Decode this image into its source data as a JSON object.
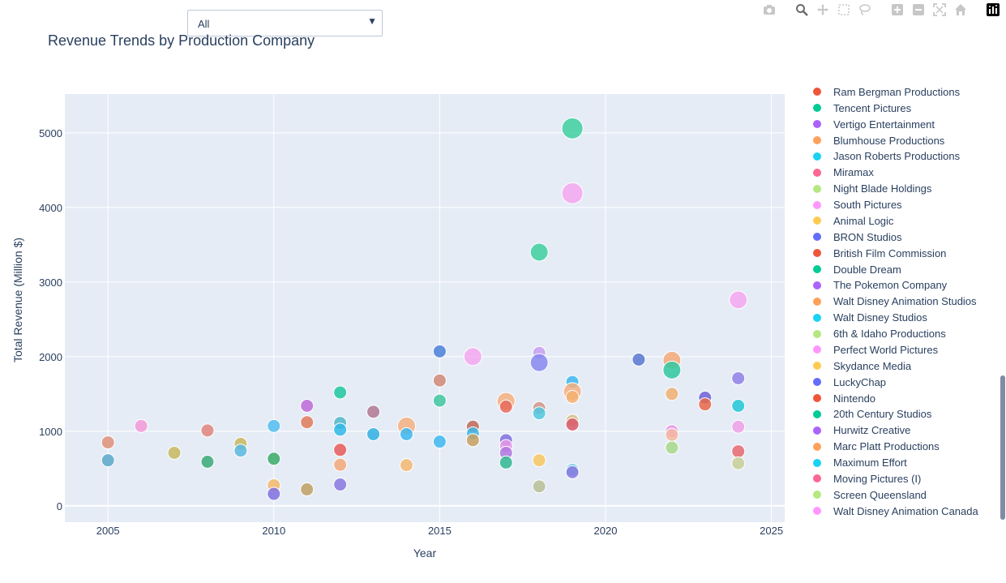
{
  "filter": {
    "selected": "All"
  },
  "title": "Revenue Trends by Production Company",
  "modebar": [
    "camera-icon",
    "zoom-icon",
    "pan-icon",
    "box-select-icon",
    "lasso-icon",
    "zoom-in-icon",
    "zoom-out-icon",
    "autoscale-icon",
    "reset-axes-icon",
    "plotly-logo-icon"
  ],
  "chart_data": {
    "type": "scatter",
    "title": "Revenue Trends by Production Company",
    "xlabel": "Year",
    "ylabel": "Total Revenue (Million $)",
    "xlim": [
      2003.7,
      2025.4
    ],
    "ylim": [
      -220,
      5520
    ],
    "xticks": [
      2005,
      2010,
      2015,
      2020,
      2025
    ],
    "yticks": [
      0,
      1000,
      2000,
      3000,
      4000,
      5000
    ],
    "grid": true,
    "legend_position": "right",
    "points": [
      {
        "x": 2005,
        "y": 850,
        "size": 8,
        "color": "#e0907a"
      },
      {
        "x": 2005,
        "y": 610,
        "size": 8,
        "color": "#5aa8c8"
      },
      {
        "x": 2006,
        "y": 1070,
        "size": 8,
        "color": "#f29ad8"
      },
      {
        "x": 2007,
        "y": 710,
        "size": 8,
        "color": "#c8b860"
      },
      {
        "x": 2008,
        "y": 1010,
        "size": 8,
        "color": "#e0857a"
      },
      {
        "x": 2008,
        "y": 590,
        "size": 8,
        "color": "#3aaa78"
      },
      {
        "x": 2009,
        "y": 830,
        "size": 8,
        "color": "#c8b860"
      },
      {
        "x": 2009,
        "y": 740,
        "size": 8,
        "color": "#5ab8e0"
      },
      {
        "x": 2010,
        "y": 1070,
        "size": 8,
        "color": "#52bdf0"
      },
      {
        "x": 2010,
        "y": 630,
        "size": 8,
        "color": "#3aaa68"
      },
      {
        "x": 2010,
        "y": 275,
        "size": 8,
        "color": "#f5b86a"
      },
      {
        "x": 2010,
        "y": 160,
        "size": 8,
        "color": "#8070e0"
      },
      {
        "x": 2011,
        "y": 1340,
        "size": 8,
        "color": "#c06ad8"
      },
      {
        "x": 2011,
        "y": 1120,
        "size": 8,
        "color": "#e07a5a"
      },
      {
        "x": 2011,
        "y": 220,
        "size": 8,
        "color": "#c0a060"
      },
      {
        "x": 2012,
        "y": 1520,
        "size": 8,
        "color": "#20c8a0"
      },
      {
        "x": 2012,
        "y": 1110,
        "size": 8,
        "color": "#50b8c8"
      },
      {
        "x": 2012,
        "y": 1020,
        "size": 8,
        "color": "#30b8e8"
      },
      {
        "x": 2012,
        "y": 750,
        "size": 8,
        "color": "#e85a58"
      },
      {
        "x": 2012,
        "y": 550,
        "size": 8,
        "color": "#f5a878"
      },
      {
        "x": 2012,
        "y": 285,
        "size": 8,
        "color": "#8878e0"
      },
      {
        "x": 2013,
        "y": 1260,
        "size": 8,
        "color": "#b07890"
      },
      {
        "x": 2013,
        "y": 960,
        "size": 8,
        "color": "#30b0e0"
      },
      {
        "x": 2014,
        "y": 1070,
        "size": 11,
        "color": "#f5b080"
      },
      {
        "x": 2014,
        "y": 960,
        "size": 8,
        "color": "#3ab8f0"
      },
      {
        "x": 2014,
        "y": 545,
        "size": 8,
        "color": "#f5b870"
      },
      {
        "x": 2015,
        "y": 2070,
        "size": 8,
        "color": "#4a80d8"
      },
      {
        "x": 2015,
        "y": 1680,
        "size": 8,
        "color": "#d08878"
      },
      {
        "x": 2015,
        "y": 1410,
        "size": 8,
        "color": "#40c8a0"
      },
      {
        "x": 2015,
        "y": 860,
        "size": 8,
        "color": "#40b8f0"
      },
      {
        "x": 2016,
        "y": 2000,
        "size": 11,
        "color": "#f5a8f0"
      },
      {
        "x": 2016,
        "y": 1060,
        "size": 8,
        "color": "#c06858"
      },
      {
        "x": 2016,
        "y": 970,
        "size": 8,
        "color": "#40b8e8"
      },
      {
        "x": 2016,
        "y": 880,
        "size": 8,
        "color": "#c8a060"
      },
      {
        "x": 2017,
        "y": 1400,
        "size": 11,
        "color": "#f5b080"
      },
      {
        "x": 2017,
        "y": 1330,
        "size": 8,
        "color": "#e86a5a"
      },
      {
        "x": 2017,
        "y": 880,
        "size": 8,
        "color": "#8070e0"
      },
      {
        "x": 2017,
        "y": 800,
        "size": 8,
        "color": "#e898e8"
      },
      {
        "x": 2017,
        "y": 710,
        "size": 8,
        "color": "#b078e0"
      },
      {
        "x": 2017,
        "y": 580,
        "size": 8,
        "color": "#30b890"
      },
      {
        "x": 2018,
        "y": 3400,
        "size": 11,
        "color": "#40d0a0"
      },
      {
        "x": 2018,
        "y": 2050,
        "size": 8,
        "color": "#c8a0f0"
      },
      {
        "x": 2018,
        "y": 1920,
        "size": 11,
        "color": "#8888f0"
      },
      {
        "x": 2018,
        "y": 1310,
        "size": 8,
        "color": "#d09888"
      },
      {
        "x": 2018,
        "y": 1240,
        "size": 8,
        "color": "#50c8e0"
      },
      {
        "x": 2018,
        "y": 610,
        "size": 8,
        "color": "#f8c860"
      },
      {
        "x": 2018,
        "y": 260,
        "size": 8,
        "color": "#b8c098"
      },
      {
        "x": 2019,
        "y": 5060,
        "size": 13,
        "color": "#40d0a0"
      },
      {
        "x": 2019,
        "y": 4190,
        "size": 13,
        "color": "#f5a8f0"
      },
      {
        "x": 2019,
        "y": 1660,
        "size": 8,
        "color": "#40b8f0"
      },
      {
        "x": 2019,
        "y": 1530,
        "size": 11,
        "color": "#f5b080"
      },
      {
        "x": 2019,
        "y": 1460,
        "size": 8,
        "color": "#f5b070"
      },
      {
        "x": 2019,
        "y": 1140,
        "size": 8,
        "color": "#d8c088"
      },
      {
        "x": 2019,
        "y": 1090,
        "size": 8,
        "color": "#d85868"
      },
      {
        "x": 2019,
        "y": 480,
        "size": 8,
        "color": "#60c8e8"
      },
      {
        "x": 2019,
        "y": 450,
        "size": 8,
        "color": "#8878e0"
      },
      {
        "x": 2021,
        "y": 1960,
        "size": 8,
        "color": "#5878d0"
      },
      {
        "x": 2022,
        "y": 1950,
        "size": 11,
        "color": "#f5a878"
      },
      {
        "x": 2022,
        "y": 1820,
        "size": 11,
        "color": "#30c8a0"
      },
      {
        "x": 2022,
        "y": 1500,
        "size": 8,
        "color": "#f0b070"
      },
      {
        "x": 2022,
        "y": 1000,
        "size": 8,
        "color": "#e898e8"
      },
      {
        "x": 2022,
        "y": 950,
        "size": 8,
        "color": "#f5b8a0"
      },
      {
        "x": 2022,
        "y": 780,
        "size": 8,
        "color": "#a8d888"
      },
      {
        "x": 2023,
        "y": 1450,
        "size": 8,
        "color": "#7060d8"
      },
      {
        "x": 2023,
        "y": 1360,
        "size": 8,
        "color": "#e86848"
      },
      {
        "x": 2024,
        "y": 2760,
        "size": 11,
        "color": "#f5a8f0"
      },
      {
        "x": 2024,
        "y": 1710,
        "size": 8,
        "color": "#9080e8"
      },
      {
        "x": 2024,
        "y": 1340,
        "size": 8,
        "color": "#20c8d8"
      },
      {
        "x": 2024,
        "y": 1060,
        "size": 8,
        "color": "#f0a0e8"
      },
      {
        "x": 2024,
        "y": 730,
        "size": 8,
        "color": "#e86870"
      },
      {
        "x": 2024,
        "y": 570,
        "size": 8,
        "color": "#c8d098"
      }
    ],
    "legend": [
      {
        "name": "Ram Bergman Productions",
        "color": "#EF553B"
      },
      {
        "name": "Tencent Pictures",
        "color": "#00CC96"
      },
      {
        "name": "Vertigo Entertainment",
        "color": "#AB63FA"
      },
      {
        "name": "Blumhouse Productions",
        "color": "#FFA15A"
      },
      {
        "name": "Jason Roberts Productions",
        "color": "#19D3F3"
      },
      {
        "name": "Miramax",
        "color": "#FF6692"
      },
      {
        "name": "Night Blade Holdings",
        "color": "#B6E880"
      },
      {
        "name": "South Pictures",
        "color": "#FF97FF"
      },
      {
        "name": "Animal Logic",
        "color": "#FECB52"
      },
      {
        "name": "BRON Studios",
        "color": "#636EFA"
      },
      {
        "name": "British Film Commission",
        "color": "#EF553B"
      },
      {
        "name": "Double Dream",
        "color": "#00CC96"
      },
      {
        "name": "The Pokemon Company",
        "color": "#AB63FA"
      },
      {
        "name": "Walt Disney Animation Studios",
        "color": "#FFA15A"
      },
      {
        "name": "Walt Disney Studios",
        "color": "#19D3F3"
      },
      {
        "name": "6th & Idaho Productions",
        "color": "#B6E880"
      },
      {
        "name": "Perfect World Pictures",
        "color": "#FF97FF"
      },
      {
        "name": "Skydance Media",
        "color": "#FECB52"
      },
      {
        "name": "LuckyChap",
        "color": "#636EFA"
      },
      {
        "name": "Nintendo",
        "color": "#EF553B"
      },
      {
        "name": "20th Century Studios",
        "color": "#00CC96"
      },
      {
        "name": "Hurwitz Creative",
        "color": "#AB63FA"
      },
      {
        "name": "Marc Platt Productions",
        "color": "#FFA15A"
      },
      {
        "name": "Maximum Effort",
        "color": "#19D3F3"
      },
      {
        "name": "Moving Pictures (I)",
        "color": "#FF6692"
      },
      {
        "name": "Screen Queensland",
        "color": "#B6E880"
      },
      {
        "name": "Walt Disney Animation Canada",
        "color": "#FF97FF"
      }
    ]
  }
}
